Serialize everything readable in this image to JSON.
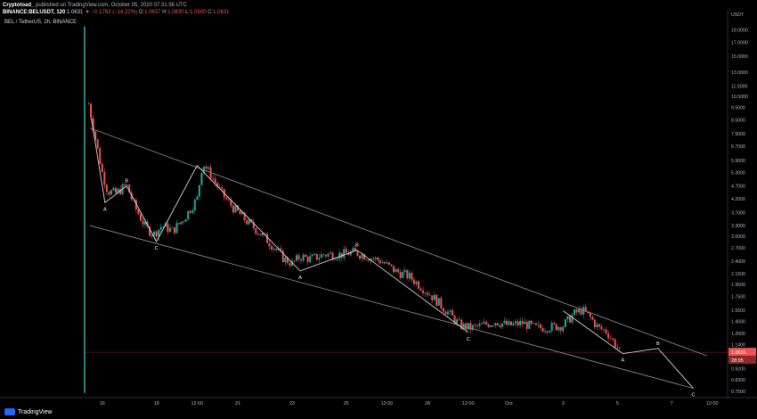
{
  "header": {
    "author": "Cryptotoad_",
    "published": " published on TradingView.com, October 05, 2020 07:31:56 UTC",
    "symbol": "BINANCE:BELUSDT, 120",
    "price": "1.0631",
    "change": "▼ −0.1762 (−14.22%)",
    "o_label": "O:",
    "o_value": "1.0637",
    "h_label": "H:",
    "h_value": "1.0830",
    "l_label": "L:",
    "l_value": "1.0500",
    "c_label": "C:",
    "c_value": "1.0631"
  },
  "pair_label": "BEL / TetherUS, 2h, BINANCE",
  "logo_text": "TradingView",
  "colors": {
    "background": "#000000",
    "up": "#26a69a",
    "down": "#ef5350",
    "lines": "#c8c8c8",
    "axis_text": "#b2b5be"
  },
  "chart_data": {
    "type": "candlestick",
    "currency": "USDT",
    "y_scale": "log",
    "ylim": [
      0.72,
      21.5
    ],
    "y_ticks": [
      "19.0000",
      "17.0000",
      "15.0000",
      "13.0000",
      "11.5000",
      "10.5000",
      "9.5000",
      "8.5000",
      "7.5000",
      "6.7000",
      "5.9000",
      "5.3000",
      "4.7000",
      "4.2000",
      "3.7000",
      "3.3000",
      "3.0000",
      "2.7000",
      "2.4000",
      "2.1500",
      "1.9500",
      "1.7500",
      "1.5500",
      "1.4000",
      "1.2600",
      "1.1400",
      "1.0000",
      "0.9200",
      "0.8300",
      "0.7500"
    ],
    "x_ticks": [
      "16",
      "18",
      "12:00",
      "21",
      "23",
      "25",
      "12:00",
      "28",
      "12:00",
      "Oct",
      "3",
      "5",
      "7",
      "12:00"
    ],
    "x_tick_times": [
      16,
      18,
      19.5,
      21,
      23,
      25,
      26.5,
      28,
      29.5,
      31,
      33,
      35,
      37,
      38.5
    ],
    "x_range": [
      15.35,
      39
    ],
    "last_price": "1.0631",
    "countdown": "28:05",
    "price_path": [
      [
        15.35,
        6.4
      ],
      [
        15.5,
        9.8
      ],
      [
        15.75,
        7.2
      ],
      [
        16,
        5.3
      ],
      [
        16.2,
        4.5
      ],
      [
        16.5,
        4.4
      ],
      [
        16.9,
        4.75
      ],
      [
        17.2,
        3.9
      ],
      [
        17.6,
        3.25
      ],
      [
        17.9,
        3.05
      ],
      [
        18.2,
        3.3
      ],
      [
        18.6,
        3.15
      ],
      [
        19,
        3.5
      ],
      [
        19.5,
        4.2
      ],
      [
        19.7,
        5.8
      ],
      [
        20,
        5.2
      ],
      [
        20.4,
        4.4
      ],
      [
        20.8,
        3.9
      ],
      [
        21.3,
        3.45
      ],
      [
        21.8,
        3.1
      ],
      [
        22.3,
        2.75
      ],
      [
        22.7,
        2.45
      ],
      [
        23,
        2.35
      ],
      [
        23.3,
        2.5
      ],
      [
        23.7,
        2.45
      ],
      [
        24.2,
        2.55
      ],
      [
        24.8,
        2.55
      ],
      [
        25.3,
        2.6
      ],
      [
        25.8,
        2.5
      ],
      [
        26.3,
        2.4
      ],
      [
        26.8,
        2.2
      ],
      [
        27.3,
        2.1
      ],
      [
        27.8,
        1.9
      ],
      [
        28.3,
        1.7
      ],
      [
        28.8,
        1.5
      ],
      [
        29.2,
        1.35
      ],
      [
        29.6,
        1.32
      ],
      [
        30,
        1.35
      ],
      [
        30.5,
        1.4
      ],
      [
        31,
        1.35
      ],
      [
        31.5,
        1.38
      ],
      [
        32,
        1.32
      ],
      [
        32.5,
        1.33
      ],
      [
        33,
        1.35
      ],
      [
        33.4,
        1.5
      ],
      [
        33.7,
        1.55
      ],
      [
        34,
        1.45
      ],
      [
        34.3,
        1.32
      ],
      [
        34.6,
        1.28
      ],
      [
        34.9,
        1.15
      ],
      [
        35.1,
        1.0631
      ]
    ],
    "spike": {
      "x": 15.35,
      "high": 19.6,
      "low": 0.74
    },
    "channel": {
      "upper": [
        [
          15.55,
          7.9
        ],
        [
          38.3,
          1.03
        ]
      ],
      "lower": [
        [
          15.55,
          3.3
        ],
        [
          37.8,
          0.77
        ]
      ]
    },
    "waves": [
      [
        [
          15.6,
          8.6
        ],
        [
          16.1,
          4.05
        ],
        [
          16.9,
          4.7
        ],
        [
          18.0,
          2.86
        ],
        [
          19.5,
          5.65
        ],
        [
          23.3,
          2.2
        ],
        [
          25.4,
          2.65
        ],
        [
          29.5,
          1.27
        ]
      ],
      [
        [
          33.0,
          1.54
        ],
        [
          35.2,
          1.05
        ],
        [
          36.5,
          1.1
        ],
        [
          37.8,
          0.77
        ]
      ]
    ],
    "wave_labels": [
      {
        "text": "A",
        "x": 16.1,
        "y": 4.05,
        "pos": "below"
      },
      {
        "text": "B",
        "x": 16.9,
        "y": 4.7,
        "pos": "above"
      },
      {
        "text": "C",
        "x": 18.0,
        "y": 2.86,
        "pos": "below"
      },
      {
        "text": "A",
        "x": 23.3,
        "y": 2.2,
        "pos": "below"
      },
      {
        "text": "B",
        "x": 25.4,
        "y": 2.65,
        "pos": "above"
      },
      {
        "text": "C",
        "x": 29.5,
        "y": 1.27,
        "pos": "below"
      },
      {
        "text": "A",
        "x": 35.2,
        "y": 1.05,
        "pos": "below"
      },
      {
        "text": "B",
        "x": 36.5,
        "y": 1.1,
        "pos": "above"
      },
      {
        "text": "C",
        "x": 37.8,
        "y": 0.77,
        "pos": "below"
      }
    ]
  }
}
